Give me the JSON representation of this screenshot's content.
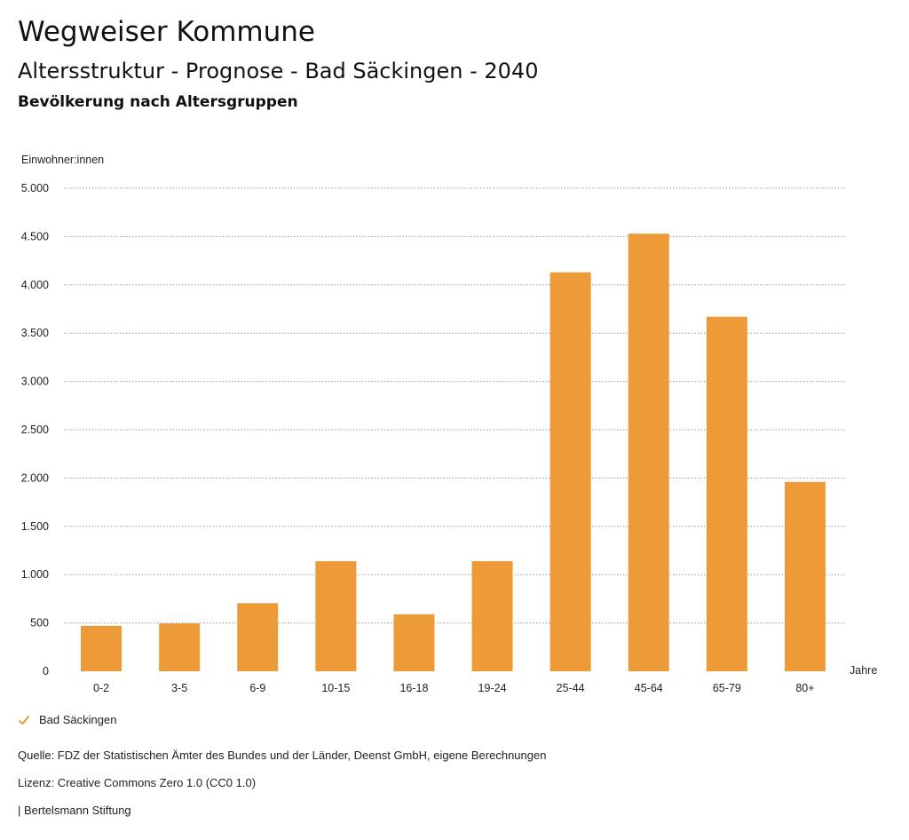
{
  "header": {
    "title": "Wegweiser Kommune",
    "subtitle": "Altersstruktur - Prognose - Bad Säckingen - 2040",
    "chart_subtitle": "Bevölkerung nach Altersgruppen"
  },
  "colors": {
    "bar": "#ED9A38",
    "grid": "#999999",
    "legend_check": "#ED9A38"
  },
  "legend": {
    "label": "Bad Säckingen",
    "icon": "check-icon"
  },
  "footer": {
    "source": "Quelle: FDZ der Statistischen Ämter des Bundes und der Länder, Deenst GmbH, eigene Berechnungen",
    "license": "Lizenz: Creative Commons Zero 1.0 (CC0 1.0)",
    "publisher": "| Bertelsmann Stiftung"
  },
  "chart_data": {
    "type": "bar",
    "ylabel": "Einwohner:innen",
    "xlabel": "Jahre",
    "ylim": [
      0,
      5000
    ],
    "yticks": [
      0,
      500,
      1000,
      1500,
      2000,
      2500,
      3000,
      3500,
      4000,
      4500,
      5000
    ],
    "ytick_labels": [
      "0",
      "500",
      "1.000",
      "1.500",
      "2.000",
      "2.500",
      "3.000",
      "3.500",
      "4.000",
      "4.500",
      "5.000"
    ],
    "grid": true,
    "legend_position": "bottom-left",
    "categories": [
      "0-2",
      "3-5",
      "6-9",
      "10-15",
      "16-18",
      "19-24",
      "25-44",
      "45-64",
      "65-79",
      "80+"
    ],
    "series": [
      {
        "name": "Bad Säckingen",
        "values": [
          470,
          495,
          705,
          1140,
          590,
          1140,
          4130,
          4530,
          3670,
          1960
        ]
      }
    ]
  }
}
